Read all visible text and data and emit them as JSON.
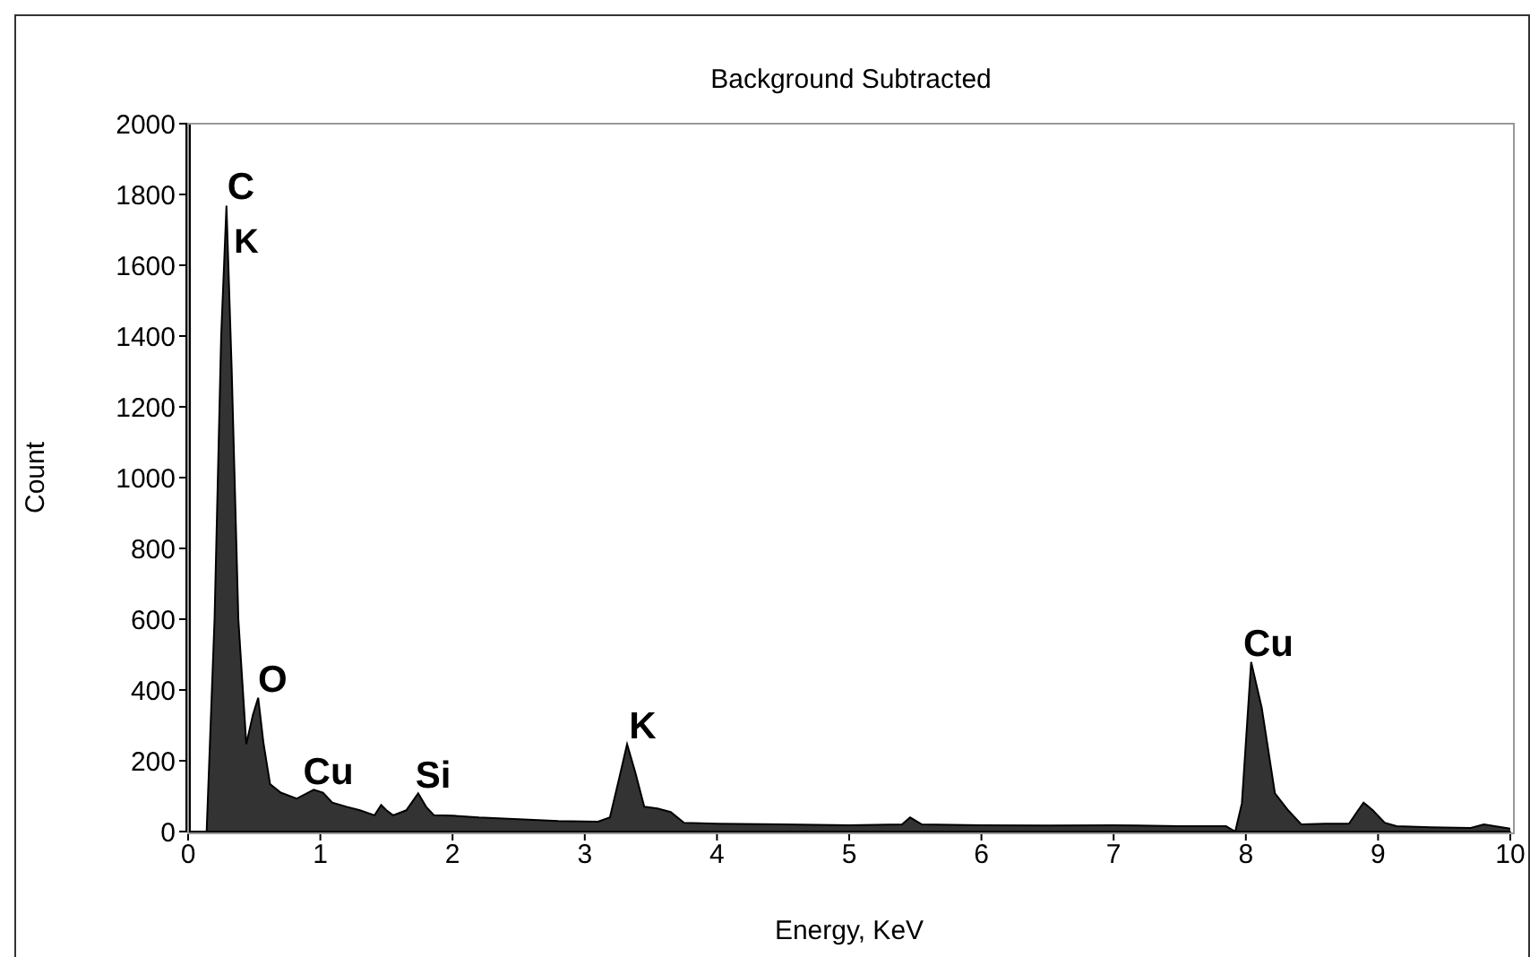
{
  "chart_data": {
    "type": "area",
    "title": "Background Subtracted",
    "xlabel": "Energy, KeV",
    "ylabel": "Count",
    "x": [
      0,
      0.1,
      0.14,
      0.2,
      0.25,
      0.29,
      0.33,
      0.38,
      0.44,
      0.49,
      0.53,
      0.57,
      0.62,
      0.7,
      0.82,
      0.95,
      1.02,
      1.09,
      1.2,
      1.3,
      1.41,
      1.46,
      1.5,
      1.55,
      1.65,
      1.74,
      1.8,
      1.86,
      2.0,
      2.2,
      2.5,
      2.8,
      3.1,
      3.19,
      3.26,
      3.32,
      3.38,
      3.45,
      3.55,
      3.65,
      3.75,
      4.0,
      4.5,
      5.0,
      5.4,
      5.46,
      5.55,
      6.0,
      6.5,
      7.0,
      7.5,
      7.85,
      7.92,
      7.97,
      8.04,
      8.12,
      8.22,
      8.32,
      8.42,
      8.6,
      8.78,
      8.84,
      8.89,
      8.96,
      9.05,
      9.14,
      9.4,
      9.7,
      9.8,
      10
    ],
    "series": [
      {
        "color": "#333333",
        "values": [
          0,
          0,
          0,
          600,
          1400,
          1768,
          1300,
          600,
          247,
          330,
          378,
          250,
          134,
          110,
          93,
          118,
          110,
          82,
          70,
          60,
          46,
          75,
          60,
          46,
          60,
          108,
          70,
          46,
          45,
          40,
          35,
          30,
          28,
          40,
          150,
          247,
          170,
          70,
          65,
          55,
          25,
          22,
          20,
          18,
          20,
          40,
          20,
          18,
          17,
          18,
          15,
          15,
          0,
          80,
          479,
          350,
          108,
          60,
          20,
          22,
          22,
          55,
          82,
          60,
          25,
          15,
          12,
          10,
          20,
          8
        ]
      }
    ],
    "xlim": [
      0,
      10
    ],
    "xticks": [
      0,
      1,
      2,
      3,
      4,
      5,
      6,
      7,
      8,
      9,
      10
    ],
    "ylim": [
      0,
      2000
    ],
    "yticks": [
      0,
      200,
      400,
      600,
      800,
      1000,
      1200,
      1400,
      1600,
      1800,
      2000
    ],
    "grid": false,
    "legend": false,
    "annotations": [
      {
        "text": "C",
        "x": 0.29,
        "y": 1768
      },
      "K",
      {
        "text": "O",
        "x": 0.53,
        "y": 378
      },
      {
        "text": "Cu",
        "x": 0.95,
        "y": 118
      },
      {
        "text": "Si",
        "x": 1.74,
        "y": 108
      },
      {
        "text": "K",
        "x": 3.32,
        "y": 247
      },
      {
        "text": "Cu",
        "x": 8.04,
        "y": 479
      }
    ]
  }
}
